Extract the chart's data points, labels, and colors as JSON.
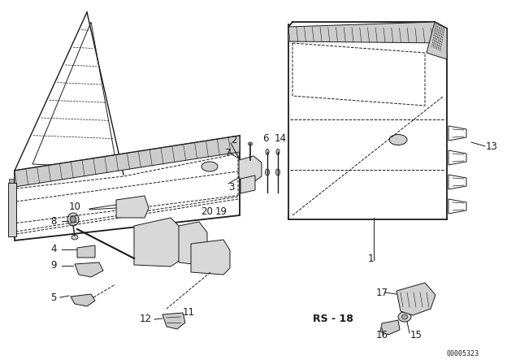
{
  "bg_color": "#ffffff",
  "line_color": "#1a1a1a",
  "diagram_id": "00005323",
  "figsize": [
    6.4,
    4.48
  ],
  "dpi": 100
}
